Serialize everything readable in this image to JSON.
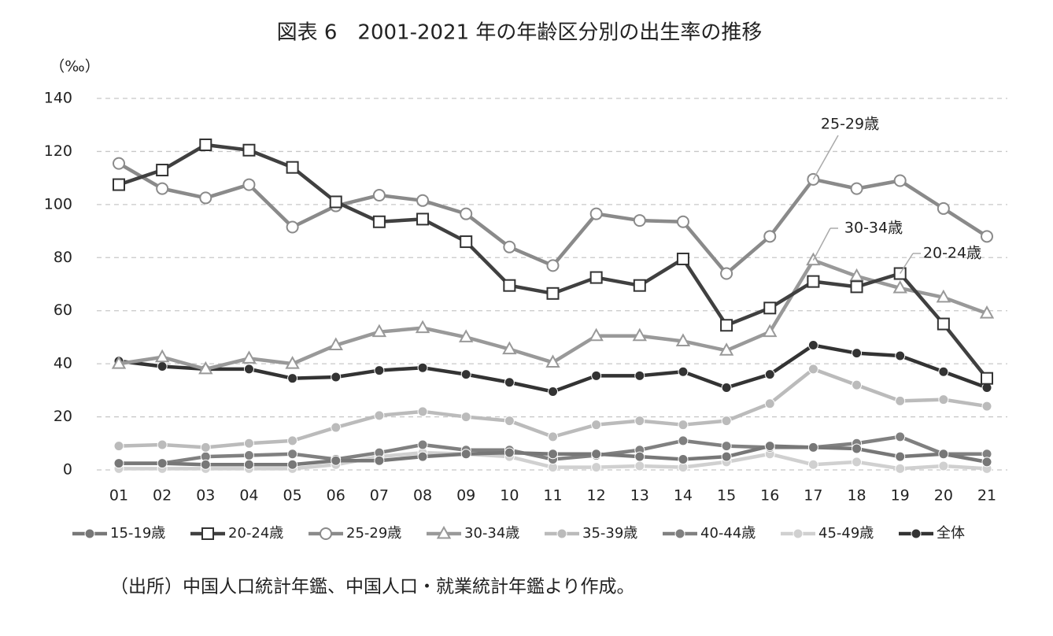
{
  "chart_data": {
    "type": "line",
    "title": "図表 6　2001-2021 年の年齢区分別の出生率の推移",
    "y_label": "（‰）",
    "source": "（出所）中国人口統計年鑑、中国人口・就業統計年鑑より作成。",
    "categories": [
      "01",
      "02",
      "03",
      "04",
      "05",
      "06",
      "07",
      "08",
      "09",
      "10",
      "11",
      "12",
      "13",
      "14",
      "15",
      "16",
      "17",
      "18",
      "19",
      "20",
      "21"
    ],
    "ylim": [
      0,
      140
    ],
    "yticks": [
      0,
      20,
      40,
      60,
      80,
      100,
      120,
      140
    ],
    "grid": true,
    "series": [
      {
        "name": "15-19歳",
        "color": "#777777",
        "marker": "circle",
        "values": [
          2.5,
          2.5,
          2,
          2,
          2,
          3.5,
          3.5,
          5,
          6,
          6.5,
          6,
          6,
          5,
          4,
          5,
          9,
          8.5,
          8,
          5,
          6,
          3
        ]
      },
      {
        "name": "20-24歳",
        "color": "#404040",
        "marker": "square-open",
        "values": [
          107.5,
          113,
          122.5,
          120.5,
          114,
          101,
          93.5,
          94.5,
          86,
          69.5,
          66.5,
          72.5,
          69.5,
          79.5,
          54.5,
          61,
          71,
          69,
          74,
          55,
          34.5
        ]
      },
      {
        "name": "25-29歳",
        "color": "#8a8a8a",
        "marker": "circle-open",
        "values": [
          115.5,
          106,
          102.5,
          107.5,
          91.5,
          99.5,
          103.5,
          101.5,
          96.5,
          84,
          77,
          96.5,
          94,
          93.5,
          74,
          88,
          109.5,
          106,
          109,
          98.5,
          88
        ]
      },
      {
        "name": "30-34歳",
        "color": "#999999",
        "marker": "triangle-open",
        "values": [
          40,
          42.5,
          38,
          42,
          40,
          47,
          52,
          53.5,
          50,
          45.5,
          40.5,
          50.5,
          50.5,
          48.5,
          45,
          52,
          79,
          73,
          68.5,
          65,
          59
        ]
      },
      {
        "name": "35-39歳",
        "color": "#bbbbbb",
        "marker": "circle",
        "values": [
          9,
          9.5,
          8.5,
          10,
          11,
          16,
          20.5,
          22,
          20,
          18.5,
          12.5,
          17,
          18.5,
          17,
          18.5,
          25,
          38,
          32,
          26,
          26.5,
          24
        ]
      },
      {
        "name": "40-44歳",
        "color": "#808080",
        "marker": "circle",
        "values": [
          2.5,
          2.5,
          5,
          5.5,
          6,
          4,
          6.5,
          9.5,
          7.5,
          7.5,
          4,
          5.5,
          7.5,
          11,
          9,
          8.5,
          8.5,
          10,
          12.5,
          6,
          6
        ]
      },
      {
        "name": "45-49歳",
        "color": "#d0d0d0",
        "marker": "circle",
        "values": [
          0.5,
          0.5,
          0.5,
          0.5,
          0.5,
          2,
          5,
          6.5,
          6,
          5,
          1,
          1,
          1.5,
          1,
          3,
          6,
          2,
          3,
          0.5,
          1.5,
          0.5
        ]
      },
      {
        "name": "全体",
        "color": "#333333",
        "marker": "circle",
        "values": [
          41,
          39,
          38,
          38,
          34.5,
          35,
          37.5,
          38.5,
          36,
          33,
          29.5,
          35.5,
          35.5,
          37,
          31,
          36,
          47,
          44,
          43,
          37,
          31
        ]
      }
    ],
    "annotations": [
      "25-29歳",
      "30-34歳",
      "20-24歳"
    ]
  }
}
